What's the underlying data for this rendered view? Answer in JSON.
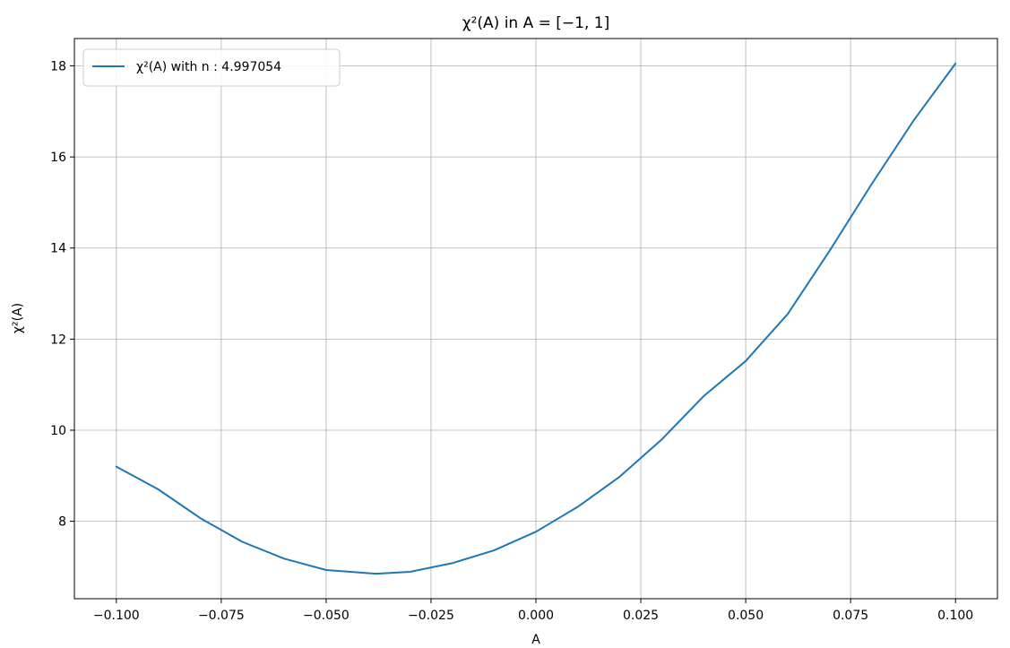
{
  "chart_data": {
    "type": "line",
    "title": "χ²(A) in A = [−1, 1]",
    "xlabel": "A",
    "ylabel": "χ²(A)",
    "xlim": [
      -0.11,
      0.11
    ],
    "ylim": [
      6.3,
      18.6
    ],
    "xticks": [
      -0.1,
      -0.075,
      -0.05,
      -0.025,
      0.0,
      0.025,
      0.05,
      0.075,
      0.1
    ],
    "xtick_labels": [
      "−0.100",
      "−0.075",
      "−0.050",
      "−0.025",
      "0.000",
      "0.025",
      "0.050",
      "0.075",
      "0.100"
    ],
    "yticks": [
      8,
      10,
      12,
      14,
      16,
      18
    ],
    "ytick_labels": [
      "8",
      "10",
      "12",
      "14",
      "16",
      "18"
    ],
    "grid": true,
    "legend_position": "top-left",
    "series": [
      {
        "name": "χ²(A) with n : 4.997054",
        "color": "#1f77b4",
        "x": [
          -0.1,
          -0.09,
          -0.08,
          -0.07,
          -0.06,
          -0.05,
          -0.04,
          -0.038,
          -0.03,
          -0.02,
          -0.01,
          0.0,
          0.01,
          0.02,
          0.03,
          0.04,
          0.05,
          0.06,
          0.07,
          0.08,
          0.09,
          0.1
        ],
        "y": [
          9.2,
          8.7,
          8.07,
          7.55,
          7.18,
          6.93,
          6.86,
          6.85,
          6.89,
          7.08,
          7.36,
          7.77,
          8.32,
          8.98,
          9.8,
          10.75,
          11.52,
          12.55,
          13.94,
          15.4,
          16.8,
          18.05
        ]
      }
    ]
  }
}
